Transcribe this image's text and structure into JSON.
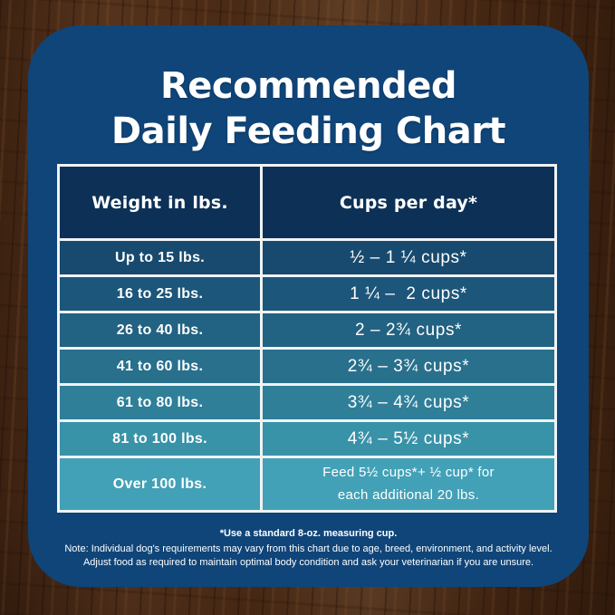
{
  "title": {
    "line1": "Recommended",
    "line2": "Daily Feeding Chart"
  },
  "table": {
    "headers": [
      "Weight in lbs.",
      "Cups per day*"
    ],
    "rows": [
      {
        "weight": "Up to 15 lbs.",
        "cups": "½ – 1 ¼ cups*"
      },
      {
        "weight": "16 to 25 lbs.",
        "cups": "1 ¼ –  2 cups*"
      },
      {
        "weight": "26 to 40 lbs.",
        "cups": "2 – 2¾ cups*"
      },
      {
        "weight": "41 to 60 lbs.",
        "cups": "2¾ – 3¾ cups*"
      },
      {
        "weight": "61 to 80 lbs.",
        "cups": "3¾ – 4¾ cups*"
      },
      {
        "weight": "81 to 100 lbs.",
        "cups": "4¾ – 5½ cups*"
      },
      {
        "weight": "Over 100 lbs.",
        "cups": "Feed 5½ cups*+ ½ cup* for\neach additional 20 lbs."
      }
    ],
    "row_colors": [
      "#174a6e",
      "#1c567a",
      "#226282",
      "#28708c",
      "#2f7f99",
      "#3892a8",
      "#42a1b7"
    ]
  },
  "notes": {
    "measuring_cup": "*Use a standard 8-oz. measuring cup.",
    "disclaimer_1": "Note: Individual dog's requirements may vary from this chart due to age, breed, environment, and activity level.",
    "disclaimer_2": "Adjust food as required to maintain optimal body condition and ask your veterinarian if you are unsure."
  },
  "colors": {
    "panel_bg": "#0f4579",
    "header_cell_bg": "#0d3156",
    "table_border": "#f0f3f5",
    "text": "#ffffff",
    "wood_dark": "#351d0d",
    "wood_mid": "#4a2c18",
    "wood_light": "#6b4830"
  },
  "chart_data": {
    "type": "table",
    "title": "Recommended Daily Feeding Chart",
    "columns": [
      "Weight in lbs.",
      "Cups per day*"
    ],
    "rows": [
      [
        "Up to 15 lbs.",
        "½ – 1 ¼ cups*"
      ],
      [
        "16 to 25 lbs.",
        "1 ¼ – 2 cups*"
      ],
      [
        "26 to 40 lbs.",
        "2 – 2¾ cups*"
      ],
      [
        "41 to 60 lbs.",
        "2¾ – 3¾ cups*"
      ],
      [
        "61 to 80 lbs.",
        "3¾ – 4¾ cups*"
      ],
      [
        "81 to 100 lbs.",
        "4¾ – 5½ cups*"
      ],
      [
        "Over 100 lbs.",
        "Feed 5½ cups* + ½ cup* for each additional 20 lbs."
      ]
    ],
    "footnote": "*Use a standard 8-oz. measuring cup.",
    "layout_hints": {
      "header_position": "top",
      "grid": "white cell borders",
      "row_shading": "dark navy to teal gradient down rows"
    }
  }
}
